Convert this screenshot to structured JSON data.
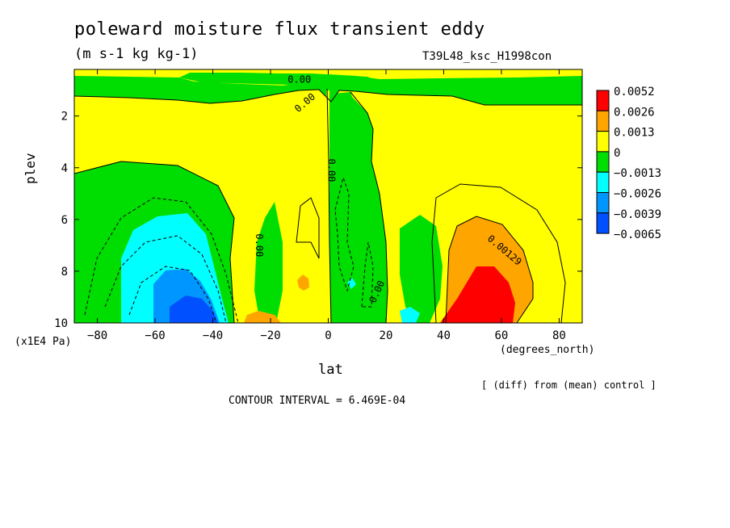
{
  "chart_data": {
    "type": "contour",
    "title": "poleward moisture flux transient eddy",
    "units": "(m s-1 kg kg-1)",
    "experiment": "T39L48_ksc_H1998con",
    "note": "[ (diff) from (mean) control ]",
    "contour_interval": "CONTOUR INTERVAL = 6.469E-04",
    "xlabel": "lat",
    "xlabel_units": "(degrees_north)",
    "ylabel": "plev",
    "ylabel_units": "(x1E4 Pa)",
    "xlim": [
      -88,
      88
    ],
    "ylim": [
      10,
      0.2
    ],
    "x_ticks": [
      -80,
      -60,
      -40,
      -20,
      0,
      20,
      40,
      60,
      80
    ],
    "y_ticks": [
      2,
      4,
      6,
      8,
      10
    ],
    "contour_labels": [
      {
        "text": "0.00",
        "lat": -10,
        "plev": 0.6,
        "angle": 0
      },
      {
        "text": "0.00",
        "lat": -8,
        "plev": 1.5,
        "angle": -40
      },
      {
        "text": "0.00",
        "lat": 1,
        "plev": 4.1,
        "angle": 90
      },
      {
        "text": "0.00",
        "lat": -24,
        "plev": 7.0,
        "angle": 90
      },
      {
        "text": "0.00",
        "lat": 17,
        "plev": 8.8,
        "angle": -65
      },
      {
        "text": "0.00129",
        "lat": 61,
        "plev": 7.2,
        "angle": 40
      }
    ],
    "legend": [
      {
        "label": "0.0052",
        "color": "#ff0000"
      },
      {
        "label": "0.0026",
        "color": "#ffa500"
      },
      {
        "label": "0.0013",
        "color": "#ffff00"
      },
      {
        "label": "0",
        "color": "#00dd00"
      },
      {
        "label": "−0.0013",
        "color": "#00ffff"
      },
      {
        "label": "−0.0026",
        "color": "#0096ff"
      },
      {
        "label": "−0.0039",
        "color": "#0050ff"
      },
      {
        "label": "−0.0065",
        "color": null
      }
    ],
    "colors": {
      "yellow": "#ffff00",
      "green": "#00dd00",
      "cyan": "#00ffff",
      "lightblue": "#0096ff",
      "blue": "#0050ff",
      "orange": "#ffa500",
      "red": "#ff0000"
    }
  }
}
